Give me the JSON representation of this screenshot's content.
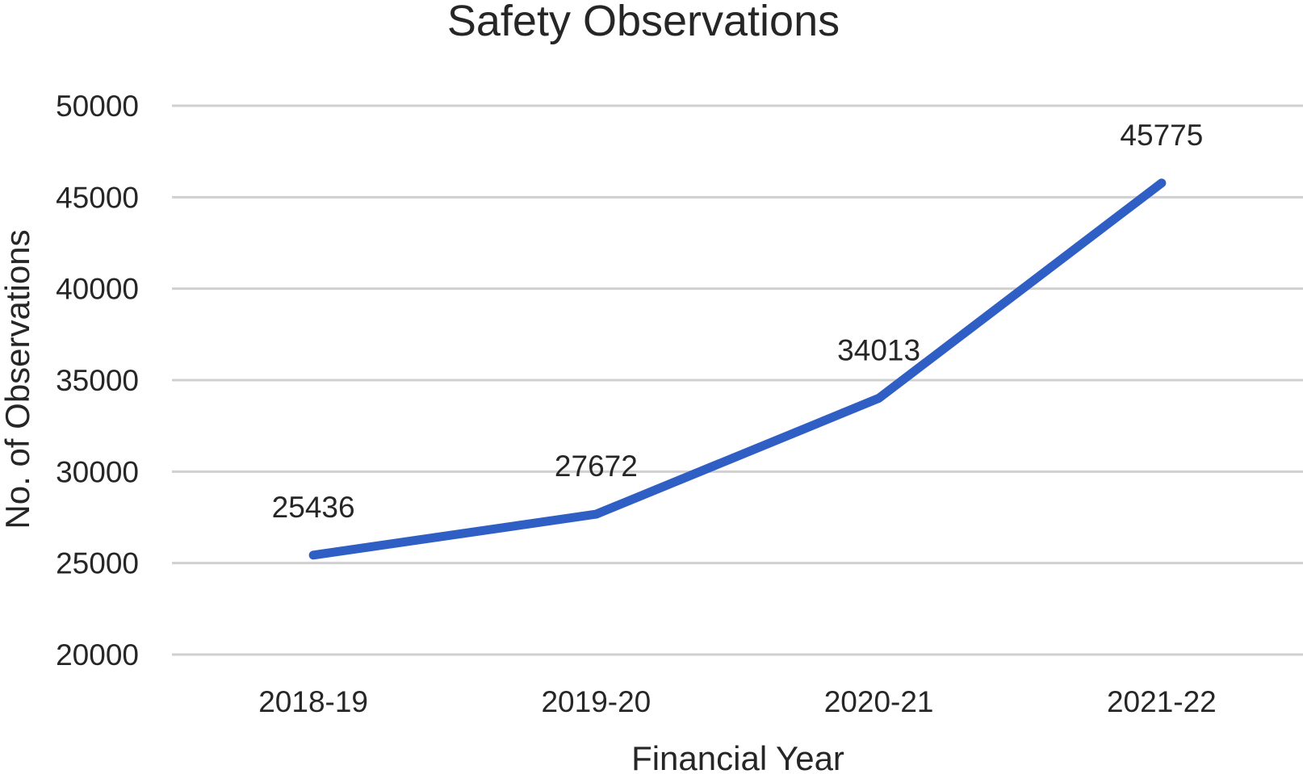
{
  "chart_data": {
    "type": "line",
    "title": "Safety Observations",
    "xlabel": "Financial Year",
    "ylabel": "No. of Observations",
    "categories": [
      "2018-19",
      "2019-20",
      "2020-21",
      "2021-22"
    ],
    "series": [
      {
        "values": [
          25436,
          27672,
          34013,
          45775
        ],
        "color": "#2f5fc4"
      }
    ],
    "data_labels": [
      "25436",
      "27672",
      "34013",
      "45775"
    ],
    "ylim": [
      20000,
      50000
    ],
    "yticks": [
      20000,
      25000,
      30000,
      35000,
      40000,
      45000,
      50000
    ],
    "ytick_labels": [
      "20000",
      "25000",
      "30000",
      "35000",
      "40000",
      "45000",
      "50000"
    ],
    "grid": true,
    "legend": "none"
  }
}
